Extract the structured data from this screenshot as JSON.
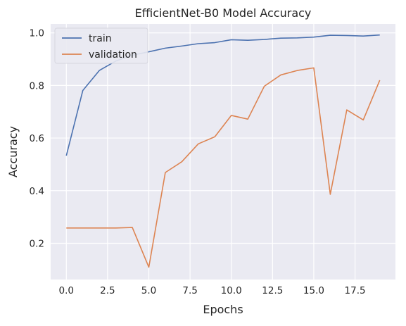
{
  "chart_data": {
    "type": "line",
    "title": "EfficientNet-B0 Model Accuracy",
    "xlabel": "Epochs",
    "ylabel": "Accuracy",
    "x": [
      0,
      1,
      2,
      3,
      4,
      5,
      6,
      7,
      8,
      9,
      10,
      11,
      12,
      13,
      14,
      15,
      16,
      17,
      18,
      19
    ],
    "xlim": [
      -0.95,
      19.95
    ],
    "ylim": [
      0.062,
      1.034
    ],
    "xticks": [
      0.0,
      2.5,
      5.0,
      7.5,
      10.0,
      12.5,
      15.0,
      17.5
    ],
    "xtick_labels": [
      "0.0",
      "2.5",
      "5.0",
      "7.5",
      "10.0",
      "12.5",
      "15.0",
      "17.5"
    ],
    "yticks": [
      0.2,
      0.4,
      0.6,
      0.8,
      1.0
    ],
    "ytick_labels": [
      "0.2",
      "0.4",
      "0.6",
      "0.8",
      "1.0"
    ],
    "grid": true,
    "legend_position": "top-left",
    "background": "#eaeaf2",
    "series": [
      {
        "name": "train",
        "color": "#4c72b0",
        "values": [
          0.533,
          0.781,
          0.857,
          0.893,
          0.915,
          0.928,
          0.942,
          0.95,
          0.959,
          0.963,
          0.974,
          0.972,
          0.975,
          0.98,
          0.981,
          0.984,
          0.991,
          0.99,
          0.988,
          0.992
        ]
      },
      {
        "name": "validation",
        "color": "#dd8452",
        "values": [
          0.258,
          0.258,
          0.258,
          0.258,
          0.26,
          0.109,
          0.469,
          0.51,
          0.578,
          0.605,
          0.686,
          0.672,
          0.797,
          0.84,
          0.857,
          0.867,
          0.386,
          0.707,
          0.669,
          0.82
        ]
      }
    ]
  }
}
